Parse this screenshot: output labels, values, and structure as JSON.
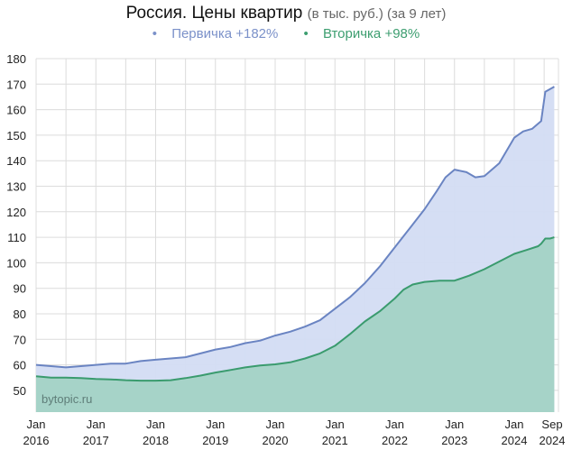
{
  "title": {
    "main": "Россия. Цены квартир",
    "sub": "(в тыс. руб.) (за 9 лет)"
  },
  "legend": [
    {
      "bullet": "•",
      "label": "Первичка +182%",
      "color": "#7b91c9"
    },
    {
      "bullet": "•",
      "label": "Вторичка +98%",
      "color": "#3d9e70"
    }
  ],
  "watermark": "bytopic.ru",
  "chart_data": {
    "type": "area",
    "title": "Россия. Цены квартир (в тыс. руб.) (за 9 лет)",
    "xlabel": "",
    "ylabel": "тыс. руб.",
    "ylim": [
      41.5,
      180
    ],
    "yticks": [
      50,
      60,
      70,
      80,
      90,
      100,
      110,
      120,
      130,
      140,
      150,
      160,
      170,
      180
    ],
    "xticks": [
      {
        "t": 2016.0,
        "line1": "Jan",
        "line2": "2016"
      },
      {
        "t": 2017.0,
        "line1": "Jan",
        "line2": "2017"
      },
      {
        "t": 2018.0,
        "line1": "Jan",
        "line2": "2018"
      },
      {
        "t": 2019.0,
        "line1": "Jan",
        "line2": "2019"
      },
      {
        "t": 2020.0,
        "line1": "Jan",
        "line2": "2020"
      },
      {
        "t": 2021.0,
        "line1": "Jan",
        "line2": "2021"
      },
      {
        "t": 2022.0,
        "line1": "Jan",
        "line2": "2022"
      },
      {
        "t": 2023.0,
        "line1": "Jan",
        "line2": "2023"
      },
      {
        "t": 2024.0,
        "line1": "Jan",
        "line2": "2024"
      },
      {
        "t": 2024.67,
        "line1": "Sep",
        "line2": "2024"
      }
    ],
    "grid": true,
    "legend_position": "top",
    "series": [
      {
        "name": "Первичка +182%",
        "color": "#6a84c2",
        "fill": "#d3dcf3",
        "x": [
          2016.0,
          2016.25,
          2016.5,
          2016.75,
          2017.0,
          2017.25,
          2017.5,
          2017.75,
          2018.0,
          2018.25,
          2018.5,
          2018.75,
          2019.0,
          2019.25,
          2019.5,
          2019.75,
          2020.0,
          2020.25,
          2020.5,
          2020.75,
          2021.0,
          2021.25,
          2021.5,
          2021.75,
          2022.0,
          2022.25,
          2022.5,
          2022.7,
          2022.85,
          2023.0,
          2023.2,
          2023.35,
          2023.5,
          2023.75,
          2024.0,
          2024.15,
          2024.3,
          2024.45,
          2024.52,
          2024.67
        ],
        "values": [
          60,
          59.5,
          59,
          59.5,
          60,
          60.5,
          60.5,
          61.5,
          62,
          62.5,
          63,
          64.5,
          66,
          67,
          68.5,
          69.5,
          71.5,
          73,
          75,
          77.5,
          82,
          86.5,
          92,
          98.5,
          106,
          113.5,
          121,
          128,
          133.5,
          136.5,
          135.5,
          133.5,
          134,
          139,
          149,
          151.5,
          152.5,
          155.5,
          167,
          169
        ]
      },
      {
        "name": "Вторичка +98%",
        "color": "#3a9b6e",
        "fill": "#a6d3c8",
        "x": [
          2016.0,
          2016.25,
          2016.5,
          2016.75,
          2017.0,
          2017.25,
          2017.5,
          2017.75,
          2018.0,
          2018.25,
          2018.5,
          2018.75,
          2019.0,
          2019.25,
          2019.5,
          2019.75,
          2020.0,
          2020.25,
          2020.5,
          2020.75,
          2021.0,
          2021.25,
          2021.5,
          2021.75,
          2022.0,
          2022.15,
          2022.3,
          2022.5,
          2022.75,
          2023.0,
          2023.25,
          2023.5,
          2023.75,
          2024.0,
          2024.2,
          2024.4,
          2024.45,
          2024.52,
          2024.6,
          2024.67
        ],
        "values": [
          55.5,
          55,
          55,
          54.8,
          54.5,
          54.3,
          54,
          53.8,
          53.8,
          54,
          54.8,
          55.8,
          57,
          58,
          59,
          59.8,
          60.2,
          61,
          62.5,
          64.5,
          67.5,
          72,
          77,
          81,
          86,
          89.5,
          91.5,
          92.5,
          93,
          93,
          95,
          97.5,
          100.5,
          103.5,
          105,
          106.5,
          107.5,
          109.5,
          109.5,
          110
        ]
      }
    ]
  }
}
